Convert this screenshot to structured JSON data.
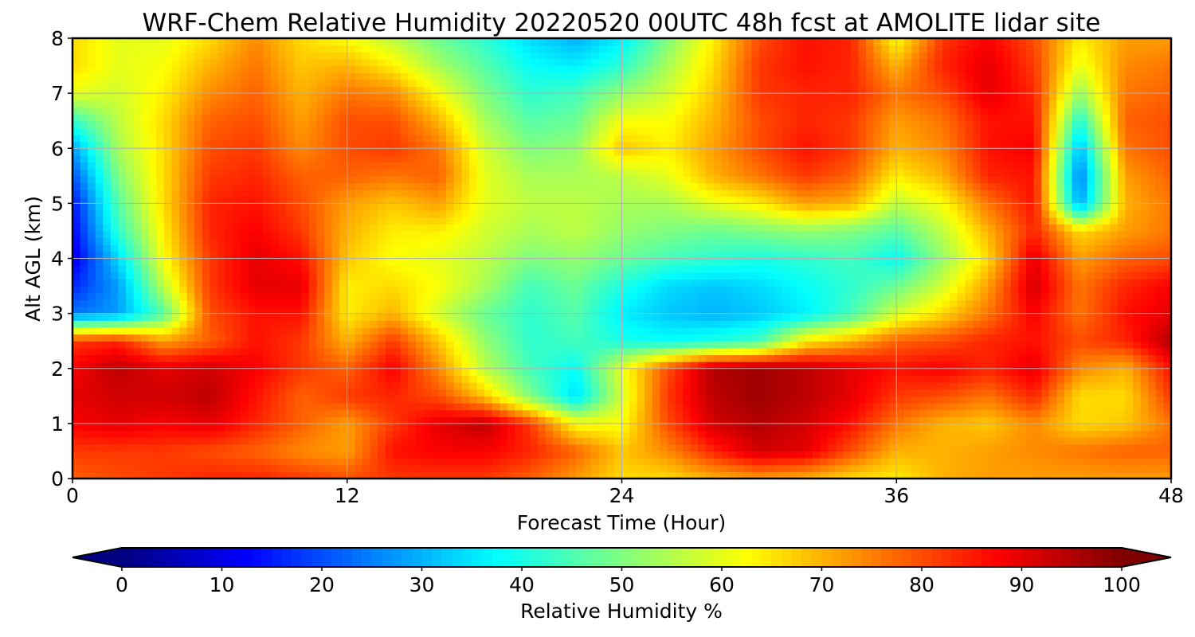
{
  "chart_data": {
    "type": "heatmap",
    "title": "WRF-Chem Relative Humidity 20220520 00UTC 48h fcst at AMOLITE lidar site",
    "xlabel": "Forecast Time (Hour)",
    "ylabel": "Alt AGL (km)",
    "xlim": [
      0,
      48
    ],
    "ylim": [
      0,
      8
    ],
    "x_ticks": [
      "0",
      "12",
      "24",
      "36",
      "48"
    ],
    "y_ticks": [
      "0",
      "1",
      "2",
      "3",
      "4",
      "5",
      "6",
      "7",
      "8"
    ],
    "grid": true,
    "colormap": "jet",
    "colorbar": {
      "label": "Relative Humidity %",
      "range": [
        0,
        100
      ],
      "ticks": [
        "0",
        "10",
        "20",
        "30",
        "40",
        "50",
        "60",
        "70",
        "80",
        "90",
        "100"
      ],
      "extend": "both",
      "orientation": "horizontal"
    },
    "x": [
      0,
      2,
      4,
      6,
      8,
      10,
      12,
      14,
      16,
      18,
      20,
      22,
      24,
      26,
      28,
      30,
      32,
      34,
      36,
      38,
      40,
      42,
      44,
      46,
      48
    ],
    "y": [
      0,
      0.5,
      1,
      1.5,
      2,
      2.5,
      3,
      3.5,
      4,
      4.5,
      5,
      5.5,
      6,
      6.5,
      7,
      7.5,
      8
    ],
    "z": [
      [
        78,
        80,
        82,
        84,
        84,
        82,
        80,
        82,
        82,
        82,
        78,
        72,
        66,
        66,
        70,
        72,
        70,
        66,
        64,
        70,
        72,
        72,
        72,
        72,
        72
      ],
      [
        82,
        82,
        82,
        80,
        78,
        74,
        72,
        86,
        88,
        88,
        84,
        78,
        68,
        74,
        84,
        92,
        90,
        80,
        70,
        70,
        72,
        74,
        76,
        78,
        78
      ],
      [
        88,
        90,
        88,
        90,
        84,
        78,
        72,
        82,
        90,
        94,
        82,
        62,
        62,
        80,
        92,
        95,
        92,
        86,
        76,
        70,
        68,
        74,
        66,
        68,
        76
      ],
      [
        90,
        92,
        92,
        94,
        86,
        78,
        82,
        84,
        80,
        68,
        50,
        34,
        58,
        82,
        94,
        97,
        94,
        90,
        82,
        80,
        76,
        84,
        66,
        66,
        82
      ],
      [
        88,
        94,
        90,
        92,
        88,
        82,
        78,
        88,
        74,
        56,
        44,
        38,
        60,
        80,
        95,
        97,
        94,
        90,
        86,
        88,
        84,
        90,
        74,
        70,
        86
      ],
      [
        82,
        84,
        72,
        78,
        86,
        82,
        70,
        82,
        68,
        52,
        42,
        44,
        40,
        38,
        40,
        44,
        64,
        70,
        78,
        80,
        84,
        86,
        80,
        84,
        95
      ],
      [
        24,
        28,
        46,
        80,
        86,
        86,
        64,
        70,
        58,
        48,
        42,
        46,
        36,
        32,
        30,
        32,
        36,
        44,
        58,
        66,
        76,
        88,
        76,
        86,
        90
      ],
      [
        16,
        28,
        56,
        82,
        90,
        90,
        64,
        66,
        62,
        54,
        44,
        48,
        40,
        34,
        32,
        34,
        38,
        42,
        48,
        58,
        72,
        92,
        76,
        84,
        88
      ],
      [
        10,
        34,
        62,
        82,
        90,
        86,
        68,
        62,
        60,
        56,
        50,
        52,
        48,
        44,
        42,
        40,
        42,
        44,
        38,
        52,
        66,
        90,
        72,
        78,
        80
      ],
      [
        12,
        42,
        64,
        84,
        88,
        82,
        70,
        64,
        64,
        58,
        54,
        56,
        52,
        50,
        48,
        50,
        52,
        50,
        46,
        56,
        70,
        84,
        66,
        72,
        76
      ],
      [
        14,
        46,
        66,
        84,
        86,
        80,
        72,
        68,
        72,
        60,
        56,
        56,
        54,
        54,
        60,
        64,
        72,
        70,
        56,
        62,
        76,
        86,
        28,
        70,
        76
      ],
      [
        20,
        50,
        66,
        82,
        84,
        78,
        78,
        76,
        78,
        60,
        54,
        54,
        56,
        60,
        70,
        76,
        82,
        78,
        64,
        70,
        84,
        86,
        24,
        72,
        78
      ],
      [
        28,
        54,
        66,
        80,
        82,
        74,
        80,
        82,
        76,
        58,
        50,
        52,
        68,
        64,
        72,
        80,
        86,
        82,
        70,
        74,
        86,
        88,
        30,
        76,
        80
      ],
      [
        42,
        56,
        66,
        78,
        80,
        72,
        80,
        80,
        70,
        54,
        46,
        48,
        62,
        62,
        70,
        80,
        84,
        82,
        72,
        76,
        86,
        86,
        40,
        78,
        80
      ],
      [
        60,
        58,
        64,
        74,
        78,
        70,
        76,
        74,
        62,
        50,
        42,
        44,
        52,
        58,
        68,
        82,
        84,
        84,
        76,
        80,
        90,
        84,
        52,
        76,
        78
      ],
      [
        66,
        60,
        62,
        70,
        76,
        68,
        70,
        64,
        54,
        46,
        38,
        36,
        42,
        54,
        66,
        82,
        86,
        84,
        70,
        84,
        90,
        82,
        60,
        74,
        76
      ],
      [
        66,
        60,
        60,
        66,
        74,
        66,
        62,
        56,
        48,
        42,
        34,
        30,
        36,
        50,
        64,
        80,
        86,
        84,
        62,
        82,
        88,
        80,
        64,
        72,
        72
      ]
    ]
  }
}
